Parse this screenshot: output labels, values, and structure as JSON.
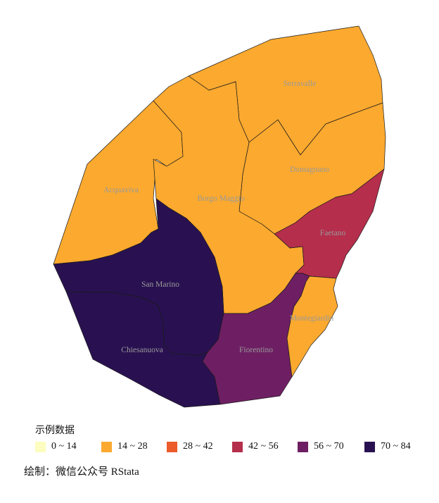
{
  "legend": {
    "title": "示例数据",
    "items": [
      {
        "label": "0 ~ 14",
        "color": "#FCFDBF"
      },
      {
        "label": "14 ~ 28",
        "color": "#FBA92F"
      },
      {
        "label": "28 ~ 42",
        "color": "#EC5B2A"
      },
      {
        "label": "42 ~ 56",
        "color": "#B52E4C"
      },
      {
        "label": "56 ~ 70",
        "color": "#6E1F63"
      },
      {
        "label": "70 ~ 84",
        "color": "#291151"
      }
    ]
  },
  "caption": "绘制：微信公众号 RStata",
  "regions": [
    {
      "key": "serravalle",
      "name": "Serravalle",
      "color": "#FBA92F"
    },
    {
      "key": "domagnano",
      "name": "Domagnano",
      "color": "#FBA92F"
    },
    {
      "key": "acquaviva",
      "name": "Acquaviva",
      "color": "#FBA92F"
    },
    {
      "key": "borgo-maggiore",
      "name": "Borgo Maggio",
      "color": "#FBA92F"
    },
    {
      "key": "faetano",
      "name": "Faetano",
      "color": "#B52E4C"
    },
    {
      "key": "san-marino",
      "name": "San Marino",
      "color": "#291151"
    },
    {
      "key": "chiesanuova",
      "name": "Chiesanuova",
      "color": "#291151"
    },
    {
      "key": "fiorentino",
      "name": "Fiorentino",
      "color": "#6E1F63"
    },
    {
      "key": "montegiardino",
      "name": "Montegiardin",
      "color": "#FBA92F"
    }
  ]
}
